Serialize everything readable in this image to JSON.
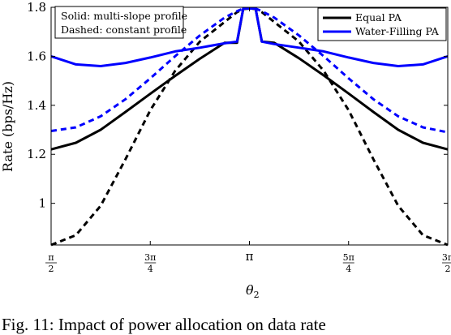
{
  "chart_data": {
    "type": "line",
    "xlabel": "θ",
    "xlabel_sub": "2",
    "ylabel": "Rate (bps/Hz)",
    "xlim": [
      1.5708,
      4.7124
    ],
    "ylim": [
      0.83,
      1.8
    ],
    "grid": false,
    "legend_placement": "top-right",
    "yticks": [
      1,
      1.2,
      1.4,
      1.6,
      1.8
    ],
    "xticks": [
      {
        "value": 1.5708,
        "num": "π",
        "den": "2"
      },
      {
        "value": 2.3562,
        "num": "3π",
        "den": "4"
      },
      {
        "value": 3.1416,
        "label": "π"
      },
      {
        "value": 3.927,
        "num": "5π",
        "den": "4"
      },
      {
        "value": 4.7124,
        "num": "3π",
        "den": "2"
      }
    ],
    "annotation_lines": [
      "Solid: multi-slope profile",
      "Dashed: constant profile"
    ],
    "legend": [
      {
        "label": "Equal PA",
        "color": "#000000"
      },
      {
        "label": "Water-Filling PA",
        "color": "#0000ff"
      }
    ],
    "x": [
      1.5708,
      1.7671,
      1.9635,
      2.1598,
      2.3562,
      2.5525,
      2.7489,
      2.9452,
      3.0434,
      3.0925,
      3.1416,
      3.1907,
      3.2398,
      3.338,
      3.5343,
      3.7306,
      3.927,
      4.1233,
      4.3197,
      4.516,
      4.7124
    ],
    "series": [
      {
        "color": "#000000",
        "dash": false,
        "values": [
          1.22,
          1.247,
          1.3,
          1.373,
          1.447,
          1.52,
          1.59,
          1.655,
          1.655,
          1.795,
          1.795,
          1.795,
          1.66,
          1.655,
          1.592,
          1.522,
          1.448,
          1.373,
          1.3,
          1.247,
          1.22
        ]
      },
      {
        "color": "#000000",
        "dash": true,
        "values": [
          0.83,
          0.87,
          0.99,
          1.18,
          1.38,
          1.54,
          1.66,
          1.74,
          1.78,
          1.793,
          1.795,
          1.793,
          1.78,
          1.74,
          1.66,
          1.54,
          1.38,
          1.18,
          0.99,
          0.87,
          0.83
        ]
      },
      {
        "color": "#0000ff",
        "dash": false,
        "values": [
          1.6,
          1.567,
          1.56,
          1.573,
          1.595,
          1.62,
          1.635,
          1.653,
          1.66,
          1.795,
          1.795,
          1.795,
          1.66,
          1.65,
          1.635,
          1.62,
          1.595,
          1.573,
          1.56,
          1.567,
          1.6
        ]
      },
      {
        "color": "#0000ff",
        "dash": true,
        "values": [
          1.295,
          1.31,
          1.355,
          1.425,
          1.51,
          1.6,
          1.685,
          1.758,
          1.784,
          1.795,
          1.795,
          1.795,
          1.784,
          1.758,
          1.685,
          1.6,
          1.51,
          1.425,
          1.355,
          1.31,
          1.29
        ]
      }
    ]
  },
  "caption": "Fig. 11: Impact of power allocation on data rate"
}
